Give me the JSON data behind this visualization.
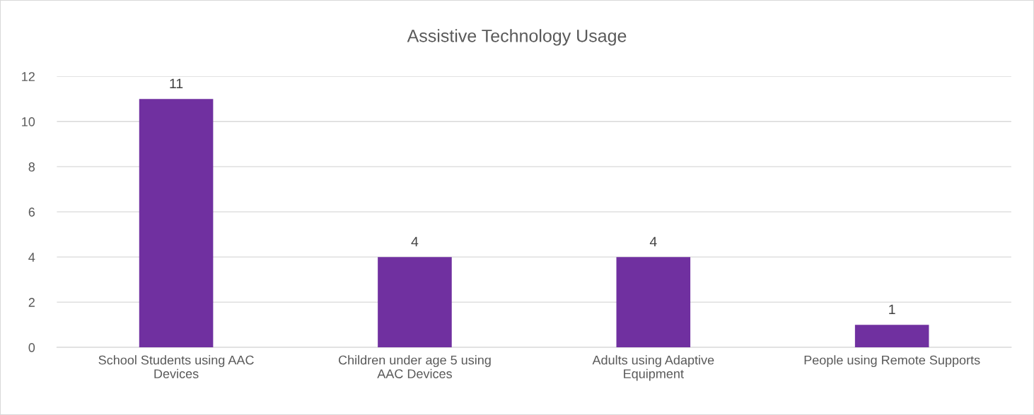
{
  "chart_data": {
    "type": "bar",
    "title": "Assistive Technology Usage",
    "categories": [
      "School Students using AAC Devices",
      "Children under age 5 using AAC Devices",
      "Adults using Adaptive Equipment",
      "People using Remote Supports"
    ],
    "values": [
      11,
      4,
      4,
      1
    ],
    "color": "#7030a0",
    "ylim": [
      0,
      12
    ],
    "yticks": [
      0,
      2,
      4,
      6,
      8,
      10,
      12
    ],
    "grid": "y",
    "data_labels": true,
    "legend": false
  }
}
